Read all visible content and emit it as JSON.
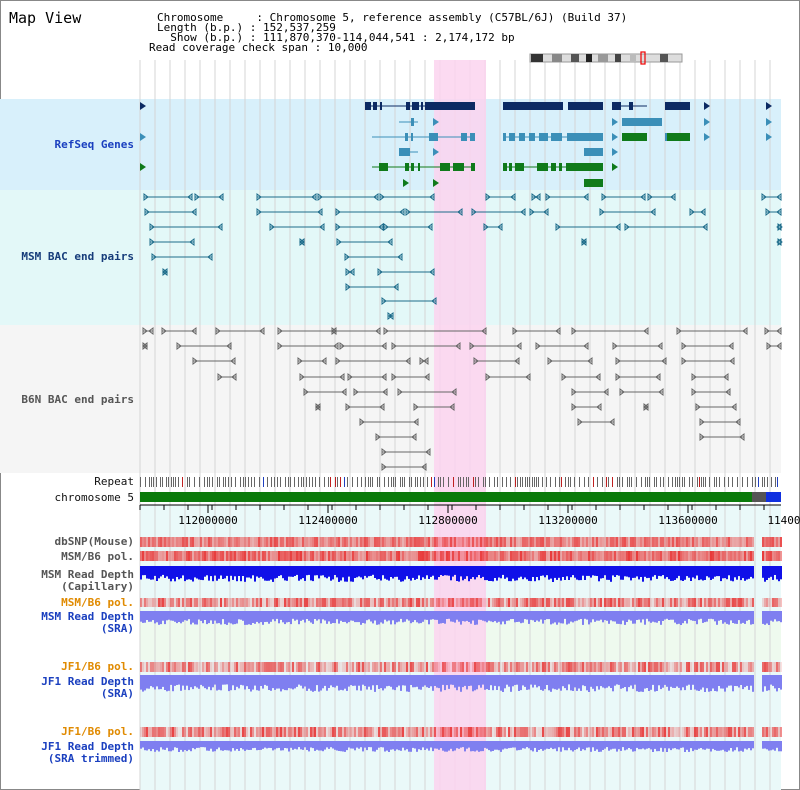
{
  "title": "Map View",
  "header": {
    "chromosome_key": "Chromosome     ",
    "chromosome_val": ": Chromosome 5, reference assembly (C57BL/6J) (Build 37)",
    "length_key": "Length (b.p.) ",
    "length_val": ": 152,537,259",
    "show_key": "  Show (b.p.) ",
    "show_val": ": 111,870,370-114,044,541 : 2,174,172 bp",
    "span_key": "Read coverage check span",
    "span_val": " : 10,000"
  },
  "tracks": {
    "refseq": "RefSeq Genes",
    "msm_bac": "MSM BAC end pairs",
    "b6n_bac": "B6N BAC end pairs",
    "repeat": "Repeat",
    "chromosome": "chromosome 5",
    "dbsnp": "dbSNP(Mouse)",
    "msm_b6_pol_1": "MSM/B6 pol.",
    "msm_depth_cap_1": "MSM Read Depth",
    "msm_depth_cap_2": "(Capillary)",
    "msm_b6_pol_2": "MSM/B6 pol.",
    "msm_depth_sra_1": "MSM Read Depth",
    "msm_depth_sra_2": "(SRA)",
    "jf1_b6_pol_1": "JF1/B6 pol.",
    "jf1_depth_sra_1": "JF1 Read Depth",
    "jf1_depth_sra_2": "(SRA)",
    "jf1_b6_pol_2": "JF1/B6 pol.",
    "jf1_depth_trim_1": "JF1 Read Depth",
    "jf1_depth_trim_2": "(SRA trimmed)"
  },
  "axis_ticks": [
    "112000000",
    "112400000",
    "112800000",
    "113200000",
    "113600000",
    "11400"
  ],
  "colors": {
    "highlight": "#fbd3ee",
    "refseq_bg": "#d8f0fb",
    "msm_bg": "#e3f8f8",
    "b6n_bg": "#f5f5f5",
    "gene_dark": "#0c2a63",
    "gene_mid": "#3b8fb8",
    "gene_green": "#0f7a1a",
    "chromosome_bar": "#0a7a0a",
    "snp": "#f06a6a",
    "depth_dark": "#1010e8",
    "depth_light": "#7f7ff0"
  }
}
